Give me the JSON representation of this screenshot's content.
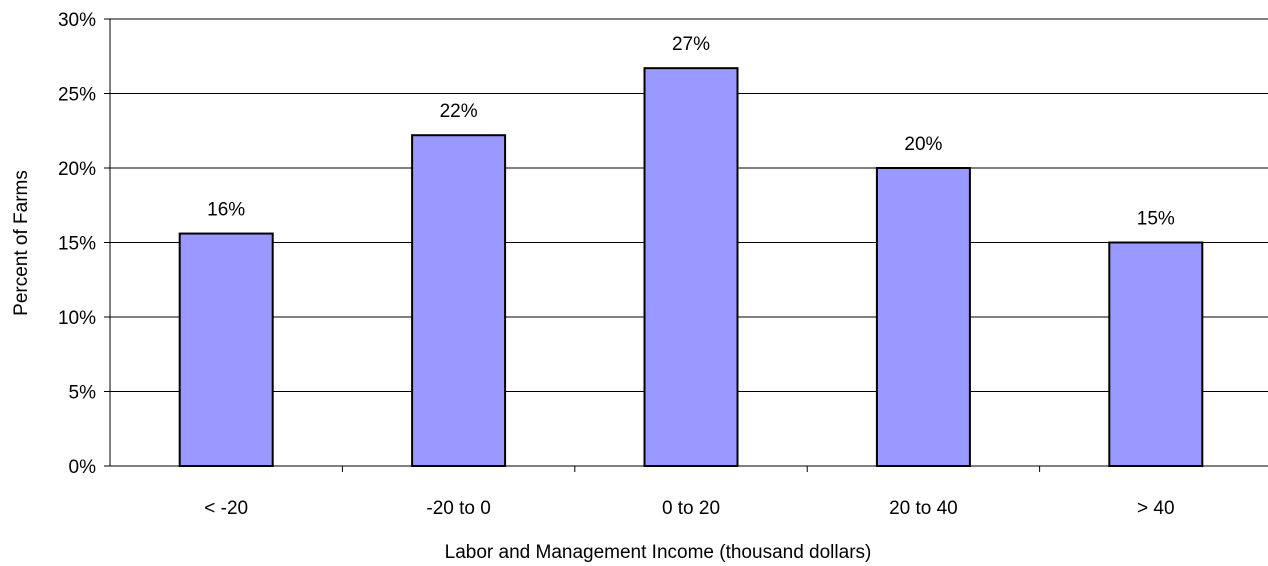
{
  "chart_data": {
    "type": "bar",
    "categories": [
      "< -20",
      "-20 to 0",
      "0 to 20",
      "20 to 40",
      "> 40"
    ],
    "values": [
      15.6,
      22.2,
      26.7,
      20.0,
      15.0
    ],
    "data_labels": [
      "16%",
      "22%",
      "27%",
      "20%",
      "15%"
    ],
    "xlabel": "Labor and Management Income (thousand dollars)",
    "ylabel": "Percent of Farms",
    "ylim": [
      0,
      30
    ],
    "yticks": [
      0,
      5,
      10,
      15,
      20,
      25,
      30
    ],
    "ytick_labels": [
      "0%",
      "5%",
      "10%",
      "15%",
      "20%",
      "25%",
      "30%"
    ],
    "grid": true,
    "legend": "none",
    "bar_color": "#9999ff",
    "bar_edge_color": "#000000",
    "grid_color": "#000000"
  }
}
